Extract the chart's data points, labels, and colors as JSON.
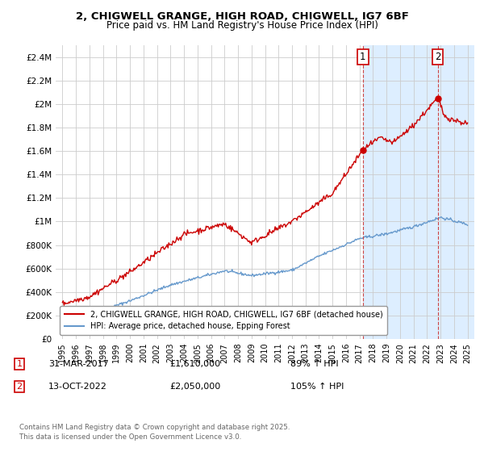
{
  "title_line1": "2, CHIGWELL GRANGE, HIGH ROAD, CHIGWELL, IG7 6BF",
  "title_line2": "Price paid vs. HM Land Registry's House Price Index (HPI)",
  "ylabel_ticks": [
    "£0",
    "£200K",
    "£400K",
    "£600K",
    "£800K",
    "£1M",
    "£1.2M",
    "£1.4M",
    "£1.6M",
    "£1.8M",
    "£2M",
    "£2.2M",
    "£2.4M"
  ],
  "ytick_values": [
    0,
    200000,
    400000,
    600000,
    800000,
    1000000,
    1200000,
    1400000,
    1600000,
    1800000,
    2000000,
    2200000,
    2400000
  ],
  "ylim": [
    0,
    2500000
  ],
  "xlim_start": 1994.5,
  "xlim_end": 2025.5,
  "background_color": "#ffffff",
  "grid_color": "#cccccc",
  "red_line_color": "#cc0000",
  "blue_line_color": "#6699cc",
  "shade_color": "#ddeeff",
  "marker1_year": 2017.25,
  "marker1_value": 1610000,
  "marker1_label": "1",
  "marker2_year": 2022.79,
  "marker2_value": 2050000,
  "marker2_label": "2",
  "legend_red_label": "2, CHIGWELL GRANGE, HIGH ROAD, CHIGWELL, IG7 6BF (detached house)",
  "legend_blue_label": "HPI: Average price, detached house, Epping Forest",
  "annotation1_date": "31-MAR-2017",
  "annotation1_price": "£1,610,000",
  "annotation1_hpi": "89% ↑ HPI",
  "annotation2_date": "13-OCT-2022",
  "annotation2_price": "£2,050,000",
  "annotation2_hpi": "105% ↑ HPI",
  "footer_text": "Contains HM Land Registry data © Crown copyright and database right 2025.\nThis data is licensed under the Open Government Licence v3.0.",
  "dashed_vline_color": "#cc4444"
}
